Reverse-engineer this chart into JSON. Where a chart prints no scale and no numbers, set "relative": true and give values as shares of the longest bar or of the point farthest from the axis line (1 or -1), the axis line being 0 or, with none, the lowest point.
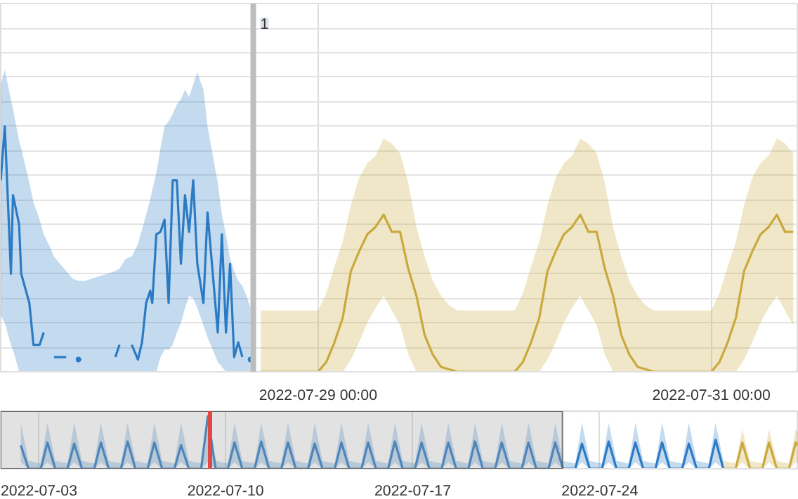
{
  "chart_data": [
    {
      "type": "line",
      "relative": true,
      "grid": true,
      "marker": "none",
      "line_style": "solid",
      "xlim": [
        "2022-07-27T09:15",
        "2022-07-31T10:40"
      ],
      "xticks": [
        {
          "value": "2022-07-29T00:00",
          "label": "2022-07-29 00:00"
        },
        {
          "value": "2022-07-31T00:00",
          "label": "2022-07-31 00:00"
        }
      ],
      "ref_lines": [
        {
          "axis": "x",
          "value": "2022-07-28T16:05",
          "label": "1",
          "color": "#bdbdbd"
        }
      ],
      "series": [
        {
          "color": "#2b7bc4",
          "x": [
            "2022-07-27T09:15",
            "2022-07-27T09:45",
            "2022-07-27T10:30",
            "2022-07-27T10:45",
            "2022-07-27T11:30",
            "2022-07-27T11:45",
            "2022-07-27T12:45",
            "2022-07-27T13:15",
            "2022-07-27T14:00",
            "2022-07-27T14:30",
            "2022-07-27T15:15",
            "2022-07-27T15:45",
            "2022-07-27T17:15",
            "2022-07-27T18:00",
            "2022-07-27T18:45",
            "2022-07-27T19:30",
            "2022-07-27T23:15",
            "2022-07-27T23:45",
            "2022-07-28T00:30",
            "2022-07-28T01:15",
            "2022-07-28T02:00",
            "2022-07-28T02:30",
            "2022-07-28T03:00",
            "2022-07-28T03:30",
            "2022-07-28T03:45",
            "2022-07-28T04:15",
            "2022-07-28T04:45",
            "2022-07-28T05:15",
            "2022-07-28T05:45",
            "2022-07-28T06:15",
            "2022-07-28T06:45",
            "2022-07-28T07:15",
            "2022-07-28T07:45",
            "2022-07-28T08:15",
            "2022-07-28T08:45",
            "2022-07-28T09:15",
            "2022-07-28T10:00",
            "2022-07-28T10:30",
            "2022-07-28T11:45",
            "2022-07-28T12:15",
            "2022-07-28T12:45",
            "2022-07-28T13:15",
            "2022-07-28T13:45",
            "2022-07-28T14:15",
            "2022-07-28T14:45",
            "2022-07-28T15:15",
            "2022-07-28T15:45"
          ],
          "values": [
            0.78,
            1.0,
            0.4,
            0.72,
            0.6,
            0.4,
            0.28,
            0.11,
            0.11,
            0.16,
            null,
            0.06,
            0.06,
            null,
            0.05,
            null,
            0.06,
            0.11,
            null,
            0.11,
            0.05,
            0.12,
            0.28,
            0.33,
            0.28,
            0.56,
            0.57,
            0.62,
            0.28,
            0.78,
            0.78,
            0.44,
            0.72,
            0.57,
            0.78,
            0.44,
            0.28,
            0.65,
            0.16,
            0.56,
            0.16,
            0.44,
            0.06,
            0.12,
            0.06,
            null,
            0.05
          ],
          "lower": [
            0.23,
            0.2,
            0.11,
            0.09,
            0,
            0,
            0,
            0,
            0,
            0,
            0,
            0,
            0,
            0,
            0,
            0,
            0,
            0,
            0,
            0,
            0,
            0,
            0,
            0,
            0,
            0,
            0.06,
            0.09,
            0.09,
            0.11,
            0.16,
            0.2,
            0.26,
            0.31,
            0.3,
            0.26,
            0.19,
            0.14,
            0.04,
            0.02,
            0,
            0,
            0,
            0,
            0,
            0,
            0
          ],
          "upper": [
            1.17,
            1.23,
            1.11,
            1.07,
            0.94,
            0.91,
            0.77,
            0.69,
            0.62,
            0.56,
            0.51,
            0.47,
            0.41,
            0.38,
            0.37,
            0.37,
            0.41,
            0.42,
            0.46,
            0.47,
            0.52,
            0.58,
            0.64,
            0.7,
            0.74,
            0.81,
            0.91,
            1.0,
            1.02,
            1.05,
            1.09,
            1.11,
            1.15,
            1.12,
            1.17,
            1.22,
            1.15,
            1.0,
            0.77,
            0.64,
            0.56,
            0.46,
            0.41,
            0.37,
            0.35,
            0.31,
            0.26
          ]
        },
        {
          "color": "#c9a93c",
          "x": [
            "2022-07-28T17:00",
            "2022-07-28T18:00",
            "2022-07-28T19:00",
            "2022-07-28T20:00",
            "2022-07-28T21:00",
            "2022-07-28T22:00",
            "2022-07-28T23:00",
            "2022-07-29T00:00",
            "2022-07-29T01:00",
            "2022-07-29T02:00",
            "2022-07-29T03:00",
            "2022-07-29T04:00",
            "2022-07-29T05:00",
            "2022-07-29T06:00",
            "2022-07-29T07:00",
            "2022-07-29T08:00",
            "2022-07-29T09:00",
            "2022-07-29T10:00",
            "2022-07-29T11:00",
            "2022-07-29T12:00",
            "2022-07-29T13:00",
            "2022-07-29T14:00",
            "2022-07-29T15:00",
            "2022-07-29T16:00",
            "2022-07-29T17:00",
            "2022-07-29T18:00",
            "2022-07-29T19:00",
            "2022-07-29T20:00",
            "2022-07-29T21:00",
            "2022-07-29T22:00",
            "2022-07-29T23:00",
            "2022-07-30T00:00",
            "2022-07-30T01:00",
            "2022-07-30T02:00",
            "2022-07-30T03:00",
            "2022-07-30T04:00",
            "2022-07-30T05:00",
            "2022-07-30T06:00",
            "2022-07-30T07:00",
            "2022-07-30T08:00",
            "2022-07-30T09:00",
            "2022-07-30T10:00",
            "2022-07-30T11:00",
            "2022-07-30T12:00",
            "2022-07-30T13:00",
            "2022-07-30T14:00",
            "2022-07-30T15:00",
            "2022-07-30T16:00",
            "2022-07-30T17:00",
            "2022-07-30T18:00",
            "2022-07-30T19:00",
            "2022-07-30T20:00",
            "2022-07-30T21:00",
            "2022-07-30T22:00",
            "2022-07-30T23:00",
            "2022-07-31T00:00",
            "2022-07-31T01:00",
            "2022-07-31T02:00",
            "2022-07-31T03:00",
            "2022-07-31T04:00",
            "2022-07-31T05:00",
            "2022-07-31T06:00",
            "2022-07-31T07:00",
            "2022-07-31T08:00",
            "2022-07-31T09:00",
            "2022-07-31T10:00"
          ],
          "values": [
            0,
            0,
            0,
            0,
            0,
            0,
            0,
            0,
            0.04,
            0.12,
            0.22,
            0.41,
            0.49,
            0.56,
            0.59,
            0.64,
            0.57,
            0.57,
            0.42,
            0.31,
            0.15,
            0.07,
            0.02,
            0.01,
            0,
            0,
            0,
            0,
            0,
            0,
            0,
            0,
            0.04,
            0.12,
            0.22,
            0.41,
            0.49,
            0.56,
            0.59,
            0.64,
            0.57,
            0.57,
            0.42,
            0.31,
            0.15,
            0.07,
            0.02,
            0.01,
            0,
            0,
            0,
            0,
            0,
            0,
            0,
            0,
            0.04,
            0.12,
            0.22,
            0.41,
            0.49,
            0.56,
            0.59,
            0.64,
            0.57,
            0.57
          ],
          "lower": [
            0,
            0,
            0,
            0,
            0,
            0,
            0,
            0,
            0,
            0,
            0,
            0.05,
            0.12,
            0.2,
            0.26,
            0.31,
            0.25,
            0.19,
            0.07,
            0,
            0,
            0,
            0,
            0,
            0,
            0,
            0,
            0,
            0,
            0,
            0,
            0,
            0,
            0,
            0,
            0.05,
            0.12,
            0.2,
            0.26,
            0.31,
            0.25,
            0.19,
            0.07,
            0,
            0,
            0,
            0,
            0,
            0,
            0,
            0,
            0,
            0,
            0,
            0,
            0,
            0,
            0,
            0,
            0.05,
            0.12,
            0.2,
            0.26,
            0.31,
            0.25,
            0.19
          ],
          "upper": [
            0.25,
            0.25,
            0.25,
            0.25,
            0.25,
            0.25,
            0.25,
            0.25,
            0.32,
            0.43,
            0.53,
            0.68,
            0.79,
            0.85,
            0.88,
            0.95,
            0.93,
            0.89,
            0.77,
            0.59,
            0.47,
            0.37,
            0.31,
            0.27,
            0.25,
            0.25,
            0.25,
            0.25,
            0.25,
            0.25,
            0.25,
            0.25,
            0.32,
            0.43,
            0.53,
            0.68,
            0.79,
            0.85,
            0.88,
            0.95,
            0.93,
            0.89,
            0.77,
            0.59,
            0.47,
            0.37,
            0.31,
            0.27,
            0.25,
            0.25,
            0.25,
            0.25,
            0.25,
            0.25,
            0.25,
            0.25,
            0.32,
            0.43,
            0.53,
            0.68,
            0.79,
            0.85,
            0.88,
            0.95,
            0.93,
            0.89
          ]
        }
      ]
    },
    {
      "type": "line",
      "relative": true,
      "grid": "x",
      "marker": "none",
      "line_style": "solid",
      "xlim": [
        "2022-07-01T14:00",
        "2022-07-31T10:40"
      ],
      "xticks": [
        {
          "value": "2022-07-03",
          "label": "2022-07-03"
        },
        {
          "value": "2022-07-10",
          "label": "2022-07-10"
        },
        {
          "value": "2022-07-17",
          "label": "2022-07-17"
        },
        {
          "value": "2022-07-24",
          "label": "2022-07-24"
        }
      ],
      "bands": [
        {
          "axis": "x",
          "from": "2022-07-01T14:00",
          "to": "2022-07-22T14:30",
          "color": "#9e9e9e"
        }
      ],
      "ref_lines": [
        {
          "axis": "x",
          "value": "2022-07-09T10:00",
          "color": "#e04848"
        }
      ],
      "series": [
        {
          "color": "#2b7bc4",
          "x": [
            "2022-07-02T08:00",
            "2022-07-02T15:00",
            "2022-07-03T02:00",
            "2022-07-03T08:00",
            "2022-07-03T15:00",
            "2022-07-04T02:00",
            "2022-07-04T08:00",
            "2022-07-04T15:00",
            "2022-07-05T02:00",
            "2022-07-05T08:00",
            "2022-07-05T15:00",
            "2022-07-06T02:00",
            "2022-07-06T08:00",
            "2022-07-06T15:00",
            "2022-07-07T02:00",
            "2022-07-07T08:00",
            "2022-07-07T15:00",
            "2022-07-08T02:00",
            "2022-07-08T08:00",
            "2022-07-08T15:00",
            "2022-07-09T02:00",
            "2022-07-09T08:00",
            "2022-07-09T15:00",
            "2022-07-10T02:00",
            "2022-07-10T08:00",
            "2022-07-10T15:00",
            "2022-07-11T02:00",
            "2022-07-11T08:00",
            "2022-07-11T15:00",
            "2022-07-12T02:00",
            "2022-07-12T08:00",
            "2022-07-12T15:00",
            "2022-07-13T02:00",
            "2022-07-13T08:00",
            "2022-07-13T15:00",
            "2022-07-14T02:00",
            "2022-07-14T08:00",
            "2022-07-14T15:00",
            "2022-07-15T02:00",
            "2022-07-15T08:00",
            "2022-07-15T15:00",
            "2022-07-16T02:00",
            "2022-07-16T08:00",
            "2022-07-16T15:00",
            "2022-07-17T02:00",
            "2022-07-17T08:00",
            "2022-07-17T15:00",
            "2022-07-18T02:00",
            "2022-07-18T08:00",
            "2022-07-18T15:00",
            "2022-07-19T02:00",
            "2022-07-19T08:00",
            "2022-07-19T15:00",
            "2022-07-20T02:00",
            "2022-07-20T08:00",
            "2022-07-20T15:00",
            "2022-07-21T02:00",
            "2022-07-21T08:00",
            "2022-07-21T15:00",
            "2022-07-22T02:00",
            "2022-07-22T08:00",
            "2022-07-22T15:00",
            "2022-07-23T02:00",
            "2022-07-23T08:00",
            "2022-07-23T15:00",
            "2022-07-24T02:00",
            "2022-07-24T08:00",
            "2022-07-24T15:00",
            "2022-07-25T02:00",
            "2022-07-25T08:00",
            "2022-07-25T15:00",
            "2022-07-26T02:00",
            "2022-07-26T08:00",
            "2022-07-26T15:00",
            "2022-07-27T02:00",
            "2022-07-27T08:00",
            "2022-07-27T15:00",
            "2022-07-28T02:00",
            "2022-07-28T08:00",
            "2022-07-28T15:00"
          ],
          "values": [
            0.45,
            0,
            0,
            0.5,
            0,
            0,
            0.48,
            0,
            0,
            0.5,
            0,
            0,
            0.52,
            0,
            0,
            0.5,
            0,
            0,
            0.45,
            0,
            0,
            1.0,
            0,
            0,
            0.5,
            0,
            0,
            0.52,
            0,
            0,
            0.5,
            0,
            0,
            0.48,
            0,
            0,
            0.5,
            0,
            0,
            0.5,
            0,
            0,
            0.52,
            0,
            0,
            0.5,
            0,
            0,
            0.5,
            0,
            0,
            0.52,
            0,
            0,
            0.5,
            0,
            0,
            0.5,
            0,
            0,
            0.5,
            0,
            0,
            0.48,
            0,
            0,
            0.52,
            0,
            0,
            0.5,
            0,
            0,
            0.5,
            0,
            0,
            0.48,
            0,
            0,
            0.55,
            0
          ],
          "lower": [
            0.12,
            0,
            0,
            0.12,
            0,
            0,
            0.12,
            0,
            0,
            0.12,
            0,
            0,
            0.12,
            0,
            0,
            0.12,
            0,
            0,
            0.12,
            0,
            0,
            0.12,
            0,
            0,
            0.12,
            0,
            0,
            0.12,
            0,
            0,
            0.12,
            0,
            0,
            0.12,
            0,
            0,
            0.12,
            0,
            0,
            0.12,
            0,
            0,
            0.12,
            0,
            0,
            0.12,
            0,
            0,
            0.12,
            0,
            0,
            0.12,
            0,
            0,
            0.12,
            0,
            0,
            0.12,
            0,
            0,
            0.12,
            0,
            0,
            0.12,
            0,
            0,
            0.12,
            0,
            0,
            0.12,
            0,
            0,
            0.12,
            0,
            0,
            0.12,
            0,
            0,
            0.12,
            0
          ],
          "upper": [
            0.88,
            0.15,
            0.1,
            0.88,
            0.15,
            0.1,
            0.88,
            0.15,
            0.1,
            0.88,
            0.15,
            0.1,
            0.88,
            0.15,
            0.1,
            0.88,
            0.15,
            0.1,
            0.88,
            0.15,
            0.1,
            0.88,
            0.15,
            0.1,
            0.88,
            0.15,
            0.1,
            0.88,
            0.15,
            0.1,
            0.88,
            0.15,
            0.1,
            0.88,
            0.15,
            0.1,
            0.88,
            0.15,
            0.1,
            0.88,
            0.15,
            0.1,
            0.88,
            0.15,
            0.1,
            0.88,
            0.15,
            0.1,
            0.88,
            0.15,
            0.1,
            0.88,
            0.15,
            0.1,
            0.88,
            0.15,
            0.1,
            0.88,
            0.15,
            0.1,
            0.88,
            0.15,
            0.1,
            0.88,
            0.15,
            0.1,
            0.88,
            0.15,
            0.1,
            0.88,
            0.15,
            0.1,
            0.88,
            0.15,
            0.1,
            0.88,
            0.15,
            0.1,
            0.88,
            0.15
          ]
        },
        {
          "color": "#c9a93c",
          "x": [
            "2022-07-28T15:00",
            "2022-07-29T02:00",
            "2022-07-29T08:00",
            "2022-07-29T15:00",
            "2022-07-30T02:00",
            "2022-07-30T08:00",
            "2022-07-30T15:00",
            "2022-07-31T02:00",
            "2022-07-31T08:00",
            "2022-07-31T10:00"
          ],
          "values": [
            0,
            0,
            0.5,
            0,
            0,
            0.5,
            0,
            0,
            0.5,
            0.45
          ],
          "lower": [
            0,
            0,
            0.12,
            0,
            0,
            0.12,
            0,
            0,
            0.12,
            0.1
          ],
          "upper": [
            0.15,
            0.1,
            0.75,
            0.15,
            0.1,
            0.75,
            0.15,
            0.1,
            0.75,
            0.7
          ]
        }
      ]
    }
  ]
}
